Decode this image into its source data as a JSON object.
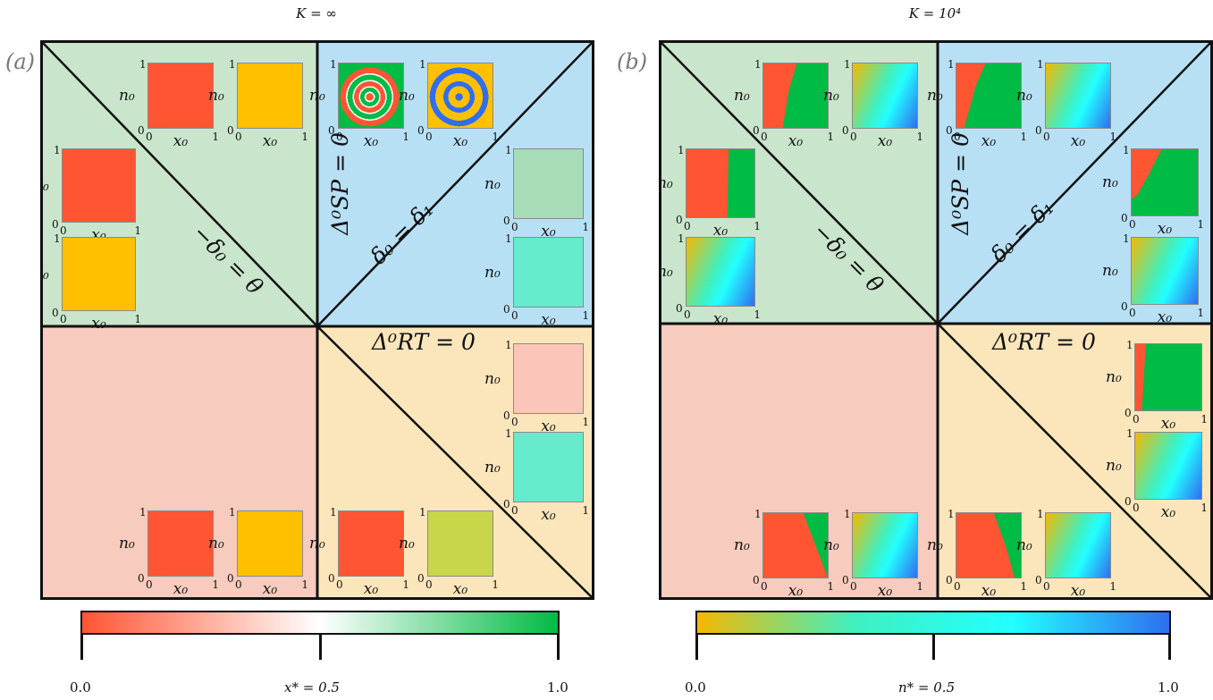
{
  "panels": [
    {
      "id": "a",
      "tag": "(a)",
      "header": "K = ∞",
      "line_labels": {
        "diag_left": "−δ₀ = θ",
        "vertical": "Δ⁰SP = 0",
        "diag_right": "δ₀ = δ₁",
        "horizontal": "Δ⁰RT = 0"
      },
      "region_colors": {
        "upper_left": "#c9e5cc",
        "upper_right": "#b8e0f5",
        "lower_left": "#f7cbbd",
        "lower_right": "#fbe6bc"
      },
      "insets": [
        {
          "id": "a-ul-top-x",
          "fill": "#ff5533"
        },
        {
          "id": "a-ul-top-n",
          "fill": "#ffc000"
        },
        {
          "id": "a-ul-mid-x",
          "fill": "#ff5533"
        },
        {
          "id": "a-ul-mid-n",
          "fill": "#ffc000"
        },
        {
          "id": "a-ur-top-x",
          "fill": "spiral-x"
        },
        {
          "id": "a-ur-top-n",
          "fill": "spiral-n"
        },
        {
          "id": "a-ur-mid-x",
          "fill": "#a6dcb8"
        },
        {
          "id": "a-ur-mid-n",
          "fill": "#66ebcc"
        },
        {
          "id": "a-lr-top-x",
          "fill": "#fbc5b9"
        },
        {
          "id": "a-lr-top-n",
          "fill": "#66ebcc"
        },
        {
          "id": "a-ll-bot-x",
          "fill": "#ff5533"
        },
        {
          "id": "a-ll-bot-n",
          "fill": "#ffc000"
        },
        {
          "id": "a-lr-bot-x",
          "fill": "#ff5533"
        },
        {
          "id": "a-lr-bot-n",
          "fill": "#c8d64a"
        }
      ]
    },
    {
      "id": "b",
      "tag": "(b)",
      "header": "K = 10⁴",
      "line_labels": {
        "diag_left": "−δ₀ = θ",
        "vertical": "Δ⁰SP = 0",
        "diag_right": "δ₀ = δ₁",
        "horizontal": "Δ⁰RT = 0"
      },
      "region_colors": {
        "upper_left": "#c9e5cc",
        "upper_right": "#b8e0f5",
        "lower_left": "#f7cbbd",
        "lower_right": "#fbe6bc"
      },
      "insets": [
        {
          "id": "b-ul-top-x",
          "fill": "split-x"
        },
        {
          "id": "b-ul-top-n",
          "fill": "grad-n"
        },
        {
          "id": "b-ul-mid-x",
          "fill": "split-x"
        },
        {
          "id": "b-ul-mid-n",
          "fill": "grad-n"
        },
        {
          "id": "b-ur-top-x",
          "fill": "split-x"
        },
        {
          "id": "b-ur-top-n",
          "fill": "grad-n"
        },
        {
          "id": "b-ur-mid-x",
          "fill": "split-x"
        },
        {
          "id": "b-ur-mid-n",
          "fill": "grad-n"
        },
        {
          "id": "b-lr-top-x",
          "fill": "split-x"
        },
        {
          "id": "b-lr-top-n",
          "fill": "grad-n"
        },
        {
          "id": "b-ll-bot-x",
          "fill": "split-x"
        },
        {
          "id": "b-ll-bot-n",
          "fill": "grad-n"
        },
        {
          "id": "b-lr-bot-x",
          "fill": "split-x"
        },
        {
          "id": "b-lr-bot-n",
          "fill": "grad-n"
        }
      ]
    }
  ],
  "inset_axes": {
    "x_label": "x₀",
    "y_label": "n₀",
    "tick_zero": "0",
    "tick_one": "1"
  },
  "colorbars": [
    {
      "id": "x-colorbar",
      "stops": [
        "#ff5533",
        "#ffffff",
        "#00bb44"
      ],
      "min_label": "0.0",
      "mid_label": "x* = 0.5",
      "max_label": "1.0"
    },
    {
      "id": "n-colorbar",
      "stops": [
        "#f5b800",
        "#3ff0c0",
        "#22ffff",
        "#2f6ef0"
      ],
      "min_label": "0.0",
      "mid_label": "n* = 0.5",
      "max_label": "1.0"
    }
  ]
}
